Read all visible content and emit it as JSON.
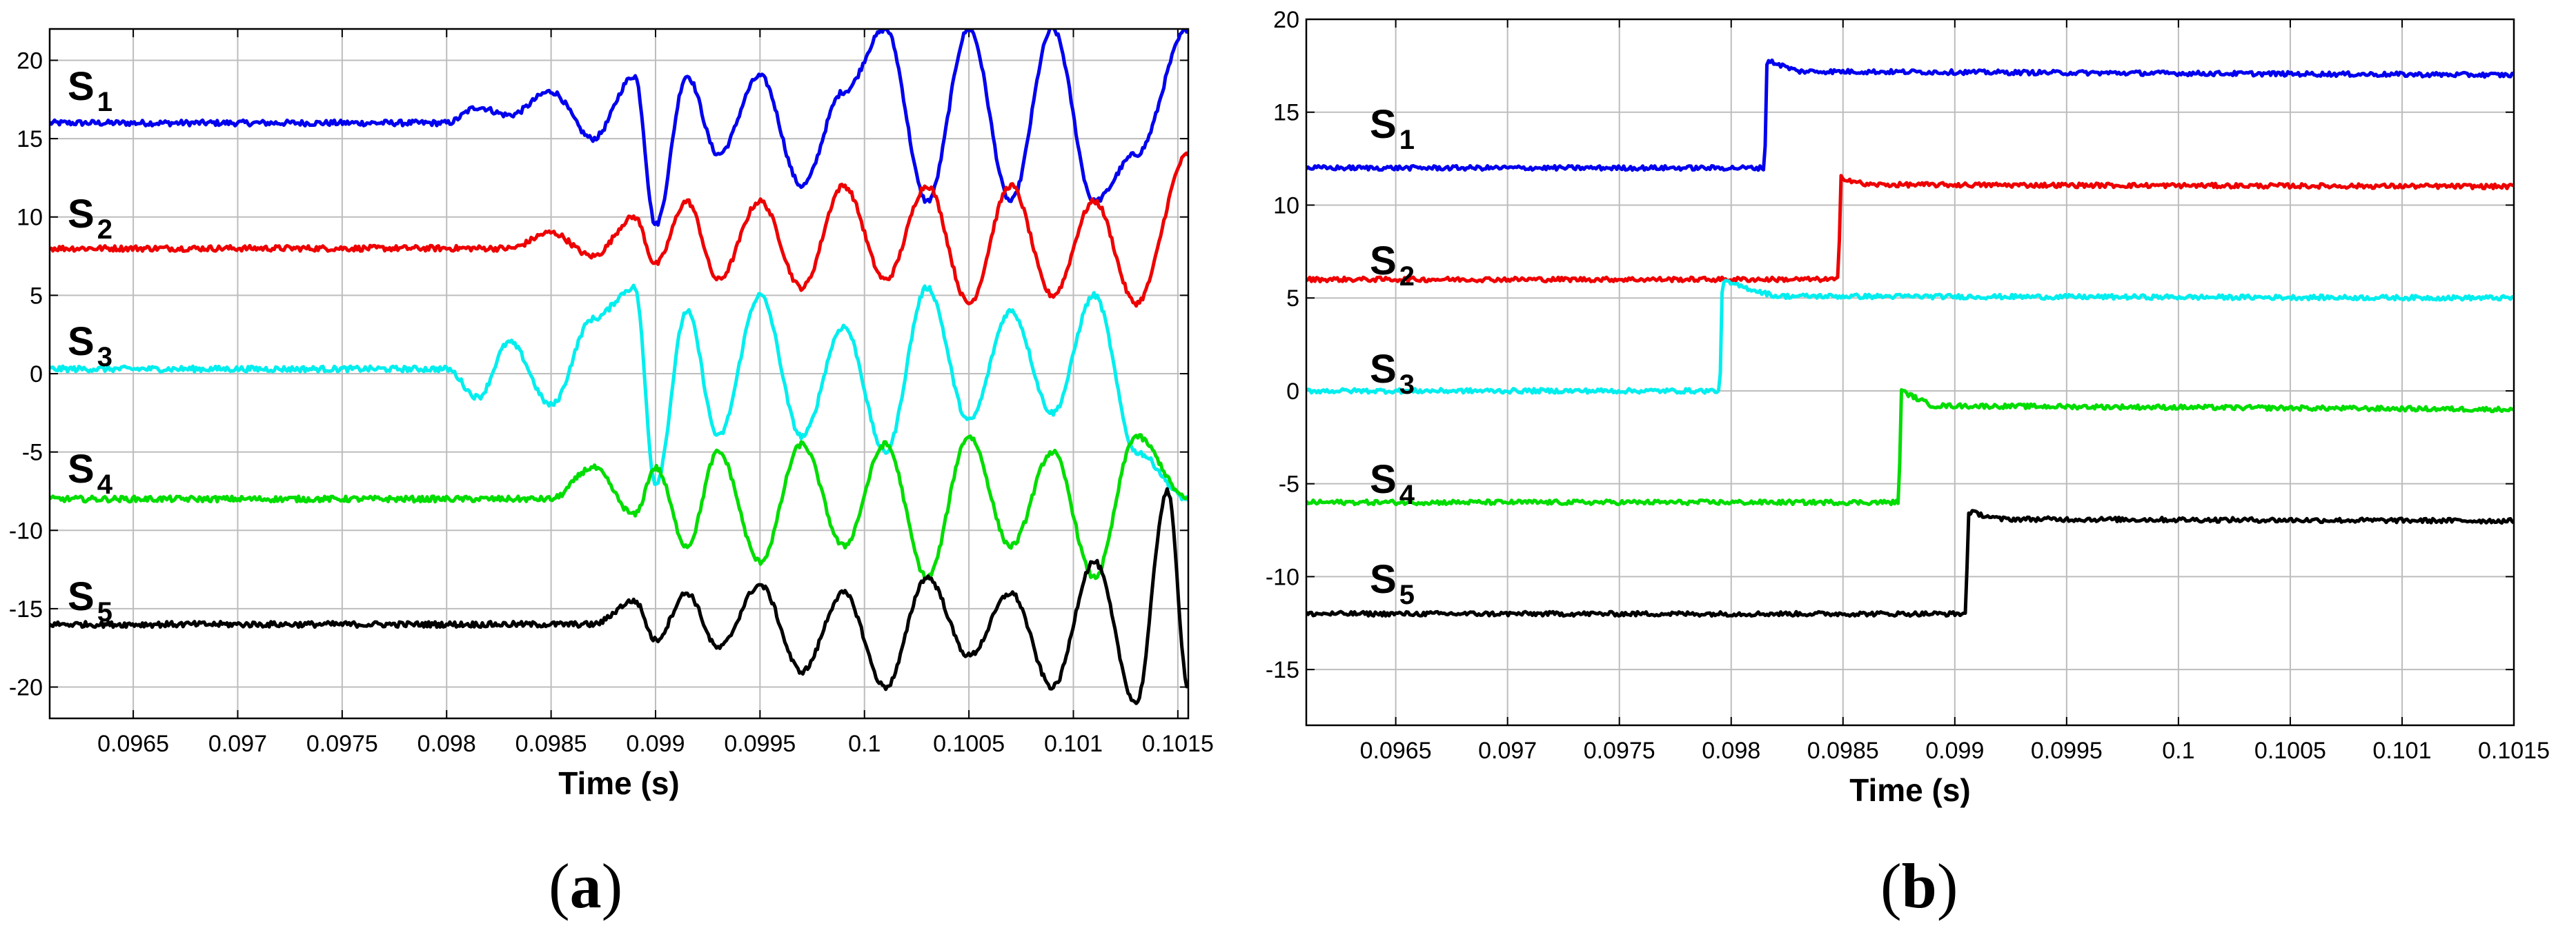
{
  "chart_data": [
    {
      "type": "line",
      "panel": "a",
      "panel_label": {
        "open": "(",
        "letter": "a",
        "close": ")"
      },
      "xlabel": "Time (s)",
      "ylabel": "",
      "xlim": [
        0.0961,
        0.10155
      ],
      "ylim": [
        -22,
        22
      ],
      "grid": true,
      "xticks": [
        "0.0965",
        "0.097",
        "0.0975",
        "0.098",
        "0.0985",
        "0.099",
        "0.0995",
        "0.1",
        "0.1005",
        "0.101",
        "0.1015"
      ],
      "xtick_values": [
        0.0965,
        0.097,
        0.0975,
        0.098,
        0.0985,
        0.099,
        0.0995,
        0.1,
        0.1005,
        0.101,
        0.1015
      ],
      "yticks": [
        "20",
        "15",
        "10",
        "5",
        "0",
        "-5",
        "-10",
        "-15",
        "-20"
      ],
      "ytick_values": [
        20,
        15,
        10,
        5,
        0,
        -5,
        -10,
        -15,
        -20
      ],
      "series": [
        {
          "name": "S",
          "sub": "1",
          "color": "#0000ee",
          "x": [
            0.0961,
            0.098,
            0.09815,
            0.0983,
            0.0985,
            0.0987,
            0.0989,
            0.099,
            0.09915,
            0.0993,
            0.0995,
            0.0997,
            0.0999,
            0.1001,
            0.1003,
            0.1005,
            0.1007,
            0.1009,
            0.1011,
            0.1013,
            0.10155
          ],
          "y": [
            16,
            16,
            17,
            16.5,
            18,
            15,
            19,
            9.5,
            19,
            14,
            19,
            12,
            18,
            22,
            11,
            22,
            11,
            22,
            11,
            14,
            22
          ]
        },
        {
          "name": "S",
          "sub": "2",
          "color": "#ee0000",
          "x": [
            0.0961,
            0.0983,
            0.0985,
            0.0987,
            0.0989,
            0.099,
            0.09915,
            0.0993,
            0.0995,
            0.0997,
            0.0999,
            0.1001,
            0.1003,
            0.1005,
            0.1007,
            0.1009,
            0.1011,
            0.1013,
            0.10155
          ],
          "y": [
            8,
            8,
            9,
            7.5,
            10,
            7,
            11,
            6,
            11,
            5.5,
            12,
            6,
            12,
            4.5,
            12,
            5,
            11,
            4.5,
            14
          ]
        },
        {
          "name": "S",
          "sub": "3",
          "color": "#00eeee",
          "x": [
            0.0961,
            0.098,
            0.09815,
            0.0983,
            0.0985,
            0.0987,
            0.0989,
            0.099,
            0.09915,
            0.0993,
            0.0995,
            0.0997,
            0.0999,
            0.1001,
            0.1003,
            0.1005,
            0.1007,
            0.1009,
            0.1011,
            0.1013,
            0.10155
          ],
          "y": [
            0.3,
            0.3,
            -1.5,
            2,
            -2,
            3.5,
            5.5,
            -7,
            4,
            -4,
            5,
            -4,
            3,
            -5,
            5.5,
            -3,
            4,
            -2.5,
            5,
            -5,
            -8
          ]
        },
        {
          "name": "S",
          "sub": "4",
          "color": "#00dd00",
          "x": [
            0.0961,
            0.0985,
            0.0987,
            0.0989,
            0.099,
            0.09915,
            0.0993,
            0.0995,
            0.0997,
            0.0999,
            0.1001,
            0.1003,
            0.1005,
            0.1007,
            0.1009,
            0.1011,
            0.1013,
            0.10155
          ],
          "y": [
            -8,
            -8,
            -6,
            -9,
            -6,
            -11,
            -5,
            -12,
            -4.5,
            -11,
            -4.5,
            -13,
            -4,
            -11,
            -5,
            -13,
            -4,
            -8
          ]
        },
        {
          "name": "S",
          "sub": "5",
          "color": "#000000",
          "x": [
            0.0961,
            0.0987,
            0.0989,
            0.099,
            0.09915,
            0.0993,
            0.0995,
            0.0997,
            0.0999,
            0.1001,
            0.1003,
            0.1005,
            0.1007,
            0.1009,
            0.1011,
            0.1013,
            0.10145,
            0.10155
          ],
          "y": [
            -16,
            -16,
            -14.5,
            -17,
            -14,
            -17.5,
            -13.5,
            -19,
            -14,
            -20,
            -13,
            -18,
            -14,
            -20,
            -12,
            -21,
            -7.5,
            -20
          ]
        }
      ]
    },
    {
      "type": "line",
      "panel": "b",
      "panel_label": {
        "open": "(",
        "letter": "b",
        "close": ")"
      },
      "xlabel": "Time (s)",
      "ylabel": "",
      "xlim": [
        0.0961,
        0.1015
      ],
      "ylim": [
        -18,
        20
      ],
      "grid": true,
      "xticks": [
        "0.0965",
        "0.097",
        "0.0975",
        "0.098",
        "0.0985",
        "0.099",
        "0.0995",
        "0.1",
        "0.1005",
        "0.101",
        "0.1015"
      ],
      "xtick_values": [
        0.0965,
        0.097,
        0.0975,
        0.098,
        0.0985,
        0.099,
        0.0995,
        0.1,
        0.1005,
        0.101,
        0.1015
      ],
      "yticks": [
        "20",
        "15",
        "10",
        "5",
        "0",
        "-5",
        "-10",
        "-15"
      ],
      "ytick_values": [
        20,
        15,
        10,
        5,
        0,
        -5,
        -10,
        -15
      ],
      "series": [
        {
          "name": "S",
          "sub": "1",
          "color": "#0000ee",
          "x": [
            0.0961,
            0.09815,
            0.09816,
            0.0983,
            0.1015
          ],
          "y": [
            12,
            12,
            17.8,
            17.2,
            17
          ]
        },
        {
          "name": "S",
          "sub": "2",
          "color": "#ee0000",
          "x": [
            0.0961,
            0.09848,
            0.09849,
            0.0986,
            0.1015
          ],
          "y": [
            6,
            6,
            11.5,
            11.1,
            11
          ]
        },
        {
          "name": "S",
          "sub": "3",
          "color": "#00eeee",
          "x": [
            0.0961,
            0.09795,
            0.09796,
            0.0982,
            0.1015
          ],
          "y": [
            0,
            0,
            5.9,
            5.1,
            5
          ]
        },
        {
          "name": "S",
          "sub": "4",
          "color": "#00dd00",
          "x": [
            0.0961,
            0.09875,
            0.09876,
            0.0989,
            0.1015
          ],
          "y": [
            -6,
            -6,
            0,
            -0.8,
            -1
          ]
        },
        {
          "name": "S",
          "sub": "5",
          "color": "#000000",
          "x": [
            0.0961,
            0.09905,
            0.09906,
            0.0992,
            0.1015
          ],
          "y": [
            -12,
            -12,
            -6.5,
            -6.9,
            -7
          ]
        }
      ]
    }
  ]
}
